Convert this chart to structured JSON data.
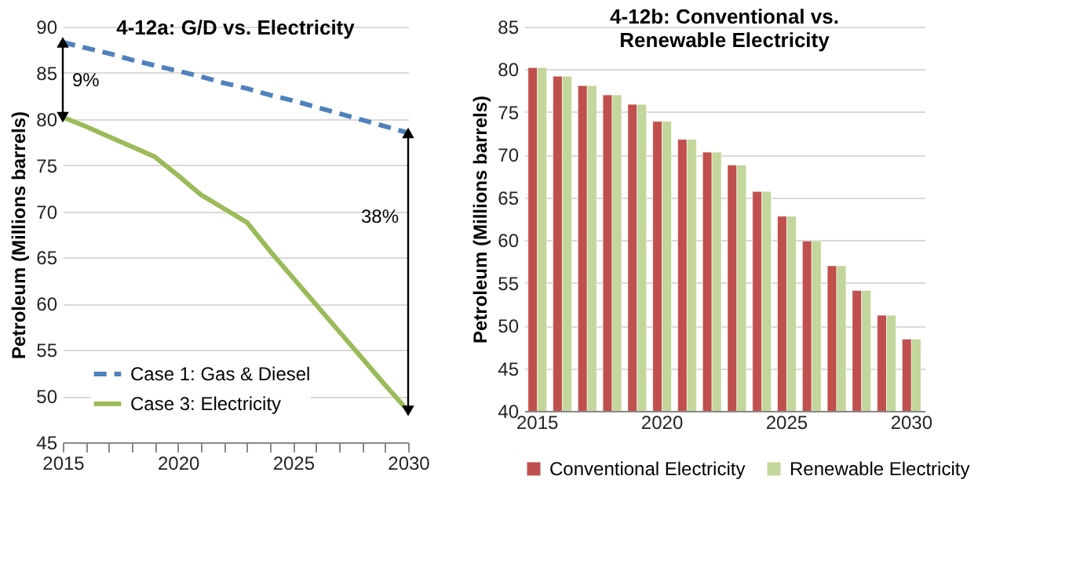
{
  "chart_data": [
    {
      "type": "line",
      "title": "4-12a: G/D vs. Electricity",
      "ylabel": "Petroleum (Millions barrels)",
      "x": [
        2015,
        2016,
        2017,
        2018,
        2019,
        2020,
        2021,
        2022,
        2023,
        2024,
        2025,
        2026,
        2027,
        2028,
        2029,
        2030
      ],
      "series": [
        {
          "name": "Case 1: Gas & Diesel",
          "color": "#4f81bd",
          "line_style": "dashed",
          "values": [
            88.3,
            87.7,
            87.1,
            86.4,
            85.8,
            85.2,
            84.6,
            83.9,
            83.3,
            82.6,
            82.0,
            81.3,
            80.6,
            79.9,
            79.2,
            78.5
          ]
        },
        {
          "name": "Case 3: Electricity",
          "color": "#9bbb59",
          "line_style": "solid",
          "values": [
            80.2,
            79.2,
            78.1,
            77.0,
            75.9,
            73.9,
            71.8,
            70.3,
            68.8,
            65.7,
            62.8,
            59.9,
            57.0,
            54.1,
            51.2,
            48.4
          ]
        }
      ],
      "xlim": [
        2015,
        2030
      ],
      "xticks": [
        2015,
        {
          "value": 2016,
          "label": null
        },
        {
          "value": 2017,
          "label": null
        },
        {
          "value": 2018,
          "label": null
        },
        {
          "value": 2019,
          "label": null
        },
        2020,
        {
          "value": 2021,
          "label": null
        },
        {
          "value": 2022,
          "label": null
        },
        {
          "value": 2023,
          "label": null
        },
        {
          "value": 2024,
          "label": null
        },
        2025,
        {
          "value": 2026,
          "label": null
        },
        {
          "value": 2027,
          "label": null
        },
        {
          "value": 2028,
          "label": null
        },
        {
          "value": 2029,
          "label": null
        },
        2030
      ],
      "ylim": [
        45,
        90
      ],
      "yticks": [
        45,
        50,
        55,
        60,
        65,
        70,
        75,
        80,
        85,
        90
      ],
      "grid": "y",
      "legend": "bottom left",
      "annotations": [
        "9%",
        "38%"
      ]
    },
    {
      "type": "bar",
      "title": "4-12b: Conventional vs. Renewable Electricity",
      "ylabel": "Petroleum (Millions barrels)",
      "categories": [
        "2015",
        null,
        null,
        null,
        null,
        "2020",
        null,
        null,
        null,
        null,
        "2025",
        null,
        null,
        null,
        null,
        "2030"
      ],
      "series": [
        {
          "name": "Conventional Electricity",
          "color": "#c0504d",
          "values": [
            80.2,
            79.2,
            78.1,
            77.0,
            75.9,
            73.9,
            71.8,
            70.3,
            68.8,
            65.7,
            62.8,
            59.9,
            57.0,
            54.1,
            51.2,
            48.4
          ]
        },
        {
          "name": "Renewable Electricity",
          "color": "#c3d69b",
          "values": [
            80.2,
            79.2,
            78.1,
            77.0,
            75.9,
            73.9,
            71.8,
            70.3,
            68.8,
            65.7,
            62.8,
            59.9,
            57.0,
            54.1,
            51.2,
            48.4
          ]
        }
      ],
      "ylim": [
        40,
        85
      ],
      "yticks": [
        40,
        45,
        50,
        55,
        60,
        65,
        70,
        75,
        80,
        85
      ],
      "grid": "y",
      "legend": "bottom"
    }
  ]
}
